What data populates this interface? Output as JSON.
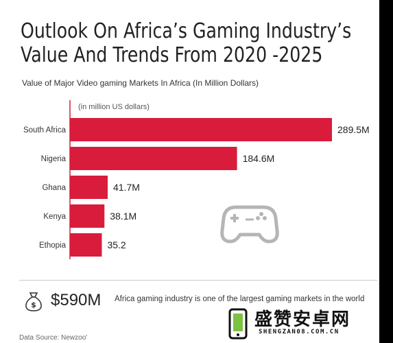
{
  "title_line1": "Outlook On Africa’s Gaming Industry’s",
  "title_line2": "Value And Trends From 2020 -2025",
  "subtitle": "Value of Major Video gaming Markets In Africa (In Million Dollars)",
  "unit_note": "(in million US dollars)",
  "total_value": "$590M",
  "footer_text": "Africa gaming industry is one of the largest gaming markets in the world",
  "source": "Data Source: Newzoo'",
  "watermark": {
    "text": "盛赞安卓网",
    "sub": "SHENGZAN08.COM.CN"
  },
  "colors": {
    "bar": "#d91c3c",
    "text": "#222222",
    "axis": "#d91c3c",
    "icon": "#b5b5b5"
  },
  "icons": [
    "gamepad-icon",
    "money-bag-icon",
    "phone-icon"
  ],
  "chart_data": {
    "type": "bar",
    "orientation": "horizontal",
    "categories": [
      "South Africa",
      "Nigeria",
      "Ghana",
      "Kenya",
      "Ethopia"
    ],
    "values": [
      289.5,
      184.6,
      41.7,
      38.1,
      35.2
    ],
    "value_labels": [
      "289.5M",
      "184.6M",
      "41.7M",
      "38.1M",
      "35.2"
    ],
    "title": "Value of Major Video gaming Markets In Africa (In Million Dollars)",
    "unit": "(in million US dollars)",
    "grid": false,
    "legend": "none"
  }
}
